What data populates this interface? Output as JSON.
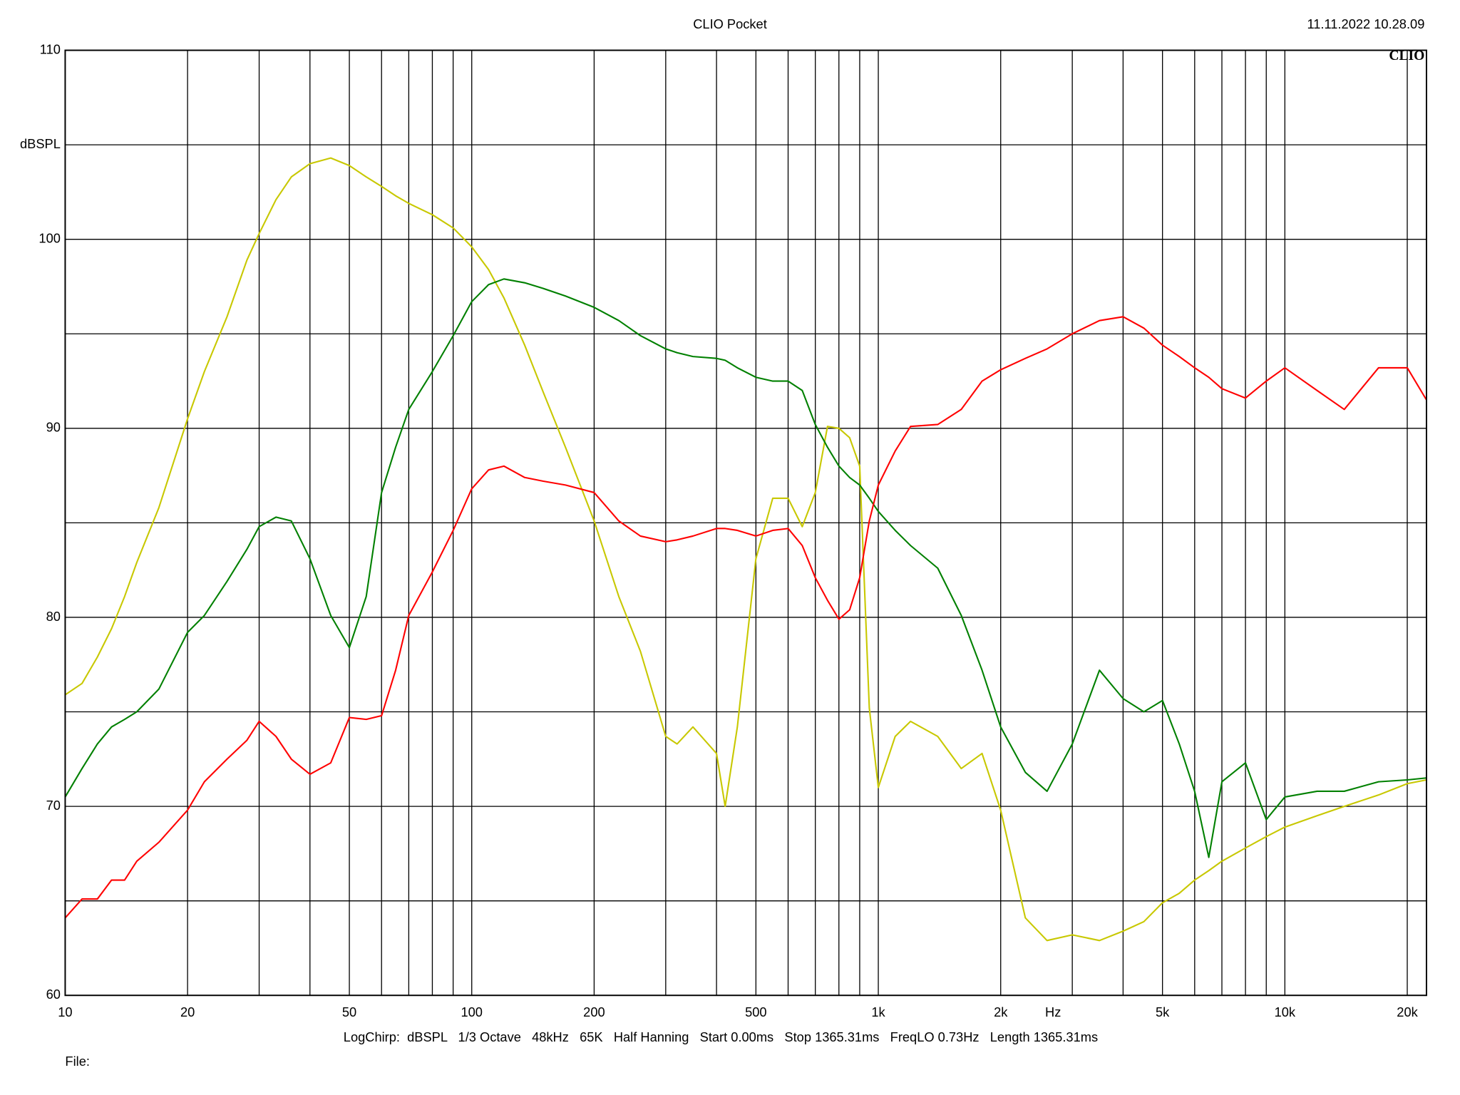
{
  "chart_data": {
    "type": "line",
    "title": "CLIO Pocket",
    "timestamp": "11.11.2022 10.28.09",
    "logo": "CLIO",
    "ylabel": "dBSPL",
    "xlabel": "Hz",
    "settings": "LogChirp:  dBSPL   1/3 Octave   48kHz   65K   Half Hanning   Start 0.00ms   Stop 1365.31ms   FreqLO 0.73Hz   Length 1365.31ms",
    "file_label": "File:",
    "xscale": "log",
    "grid": true,
    "xlim": [
      10,
      22300
    ],
    "ylim": [
      60,
      110
    ],
    "xticks": [
      10,
      20,
      50,
      100,
      200,
      500,
      {
        "value": 1000,
        "label": "1k"
      },
      {
        "value": 2000,
        "label": "2k"
      },
      {
        "value": 5000,
        "label": "5k"
      },
      {
        "value": 10000,
        "label": "10k"
      },
      {
        "value": 20000,
        "label": "20k"
      }
    ],
    "xgrid": [
      30,
      40,
      60,
      70,
      80,
      90,
      300,
      400,
      600,
      700,
      800,
      900,
      3000,
      4000,
      6000,
      7000,
      8000,
      9000
    ],
    "yticks": [
      60,
      70,
      80,
      90,
      100,
      110
    ],
    "ygrid": [
      65,
      75,
      85,
      95,
      105
    ],
    "x": [
      10,
      11,
      12,
      13,
      14,
      15,
      17,
      20,
      22,
      25,
      28,
      30,
      33,
      36,
      40,
      45,
      50,
      55,
      60,
      65,
      70,
      80,
      90,
      100,
      110,
      120,
      135,
      150,
      170,
      200,
      230,
      260,
      300,
      320,
      350,
      400,
      420,
      450,
      500,
      550,
      600,
      650,
      700,
      750,
      800,
      850,
      900,
      950,
      1000,
      1100,
      1200,
      1400,
      1600,
      1800,
      2000,
      2300,
      2600,
      3000,
      3500,
      4000,
      4500,
      5000,
      5500,
      6000,
      6500,
      7000,
      8000,
      9000,
      10000,
      12000,
      14000,
      17000,
      20000,
      22300
    ],
    "series": [
      {
        "color": "#c8c800",
        "values": [
          75.9,
          76.5,
          77.9,
          79.4,
          81.1,
          82.9,
          85.8,
          90.5,
          93.0,
          95.9,
          98.9,
          100.3,
          102.1,
          103.3,
          104.0,
          104.3,
          103.9,
          103.3,
          102.8,
          102.3,
          101.9,
          101.3,
          100.6,
          99.6,
          98.4,
          96.9,
          94.4,
          91.9,
          89.0,
          85.1,
          81.1,
          78.2,
          73.7,
          73.3,
          74.2,
          72.8,
          70.0,
          74.2,
          83.1,
          86.3,
          86.3,
          84.8,
          86.6,
          90.1,
          90.0,
          89.5,
          88.0,
          75.2,
          71.0,
          73.7,
          74.5,
          73.7,
          72.0,
          72.8,
          69.8,
          64.1,
          62.9,
          63.2,
          62.9,
          63.4,
          63.9,
          64.9,
          65.4,
          66.1,
          66.6,
          67.1,
          67.8,
          68.4,
          68.9,
          69.5,
          70.0,
          70.6,
          71.2,
          71.4
        ]
      },
      {
        "color": "#008000",
        "values": [
          70.5,
          72.0,
          73.3,
          74.2,
          74.6,
          75.0,
          76.2,
          79.2,
          80.1,
          81.9,
          83.6,
          84.8,
          85.3,
          85.1,
          83.1,
          80.1,
          78.4,
          81.1,
          86.6,
          89.0,
          91.0,
          93.0,
          94.9,
          96.7,
          97.6,
          97.9,
          97.7,
          97.4,
          97.0,
          96.4,
          95.7,
          94.9,
          94.2,
          94.0,
          93.8,
          93.7,
          93.6,
          93.2,
          92.7,
          92.5,
          92.5,
          92.0,
          90.2,
          89.0,
          88.0,
          87.4,
          87.0,
          86.3,
          85.6,
          84.6,
          83.8,
          82.6,
          80.1,
          77.2,
          74.2,
          71.8,
          70.8,
          73.3,
          77.2,
          75.7,
          75.0,
          75.6,
          73.3,
          70.8,
          67.3,
          71.3,
          72.3,
          69.3,
          70.5,
          70.8,
          70.8,
          71.3,
          71.4,
          71.5
        ]
      },
      {
        "color": "#ff0000",
        "values": [
          64.1,
          65.1,
          65.1,
          66.1,
          66.1,
          67.1,
          68.1,
          69.8,
          71.3,
          72.5,
          73.5,
          74.5,
          73.7,
          72.5,
          71.7,
          72.3,
          74.7,
          74.6,
          74.8,
          77.2,
          80.1,
          82.4,
          84.6,
          86.8,
          87.8,
          88.0,
          87.4,
          87.2,
          87.0,
          86.6,
          85.1,
          84.3,
          84.0,
          84.1,
          84.3,
          84.7,
          84.7,
          84.6,
          84.3,
          84.6,
          84.7,
          83.8,
          82.1,
          80.9,
          79.9,
          80.4,
          82.1,
          85.1,
          87.0,
          88.8,
          90.1,
          90.2,
          91.0,
          92.5,
          93.1,
          93.7,
          94.2,
          95.0,
          95.7,
          95.9,
          95.3,
          94.4,
          93.8,
          93.2,
          92.7,
          92.1,
          91.6,
          92.5,
          93.2,
          92.0,
          91.0,
          93.2,
          93.2,
          91.5
        ]
      }
    ]
  }
}
